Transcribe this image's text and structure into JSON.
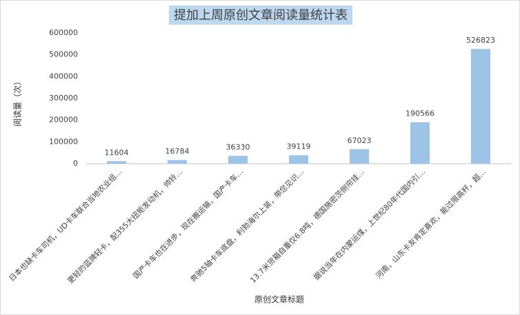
{
  "chart_data": {
    "type": "bar",
    "title": "提加上周原创文章阅读量统计表",
    "x_label": "原创文章标题",
    "y_label": "阅读量（次）",
    "categories": [
      "日本也缺卡车司机，UD卡车联合当地农业组…",
      "更轻的蓝牌轻卡，配355大扭矩发动机，帅铃…",
      "国产卡车也在进步，现在搬运输，国产卡车…",
      "奔驰5轴卡车底盘，利勃海尔上装，带您见识…",
      "13.7米货箱自重仅6.8吨，德国施密茨侧帘挂…",
      "据说当年在内蒙运煤，上世纪80年代国内引…",
      "河南，山东卡友肯定喜欢，能过限高杆，超…"
    ],
    "values": [
      11604,
      16784,
      36330,
      39119,
      67023,
      190566,
      526823
    ],
    "color": "#9dc3e6",
    "ylim": [
      0,
      600000
    ],
    "yticks": [
      0,
      100000,
      200000,
      300000,
      400000,
      500000,
      600000
    ],
    "grid": false
  }
}
